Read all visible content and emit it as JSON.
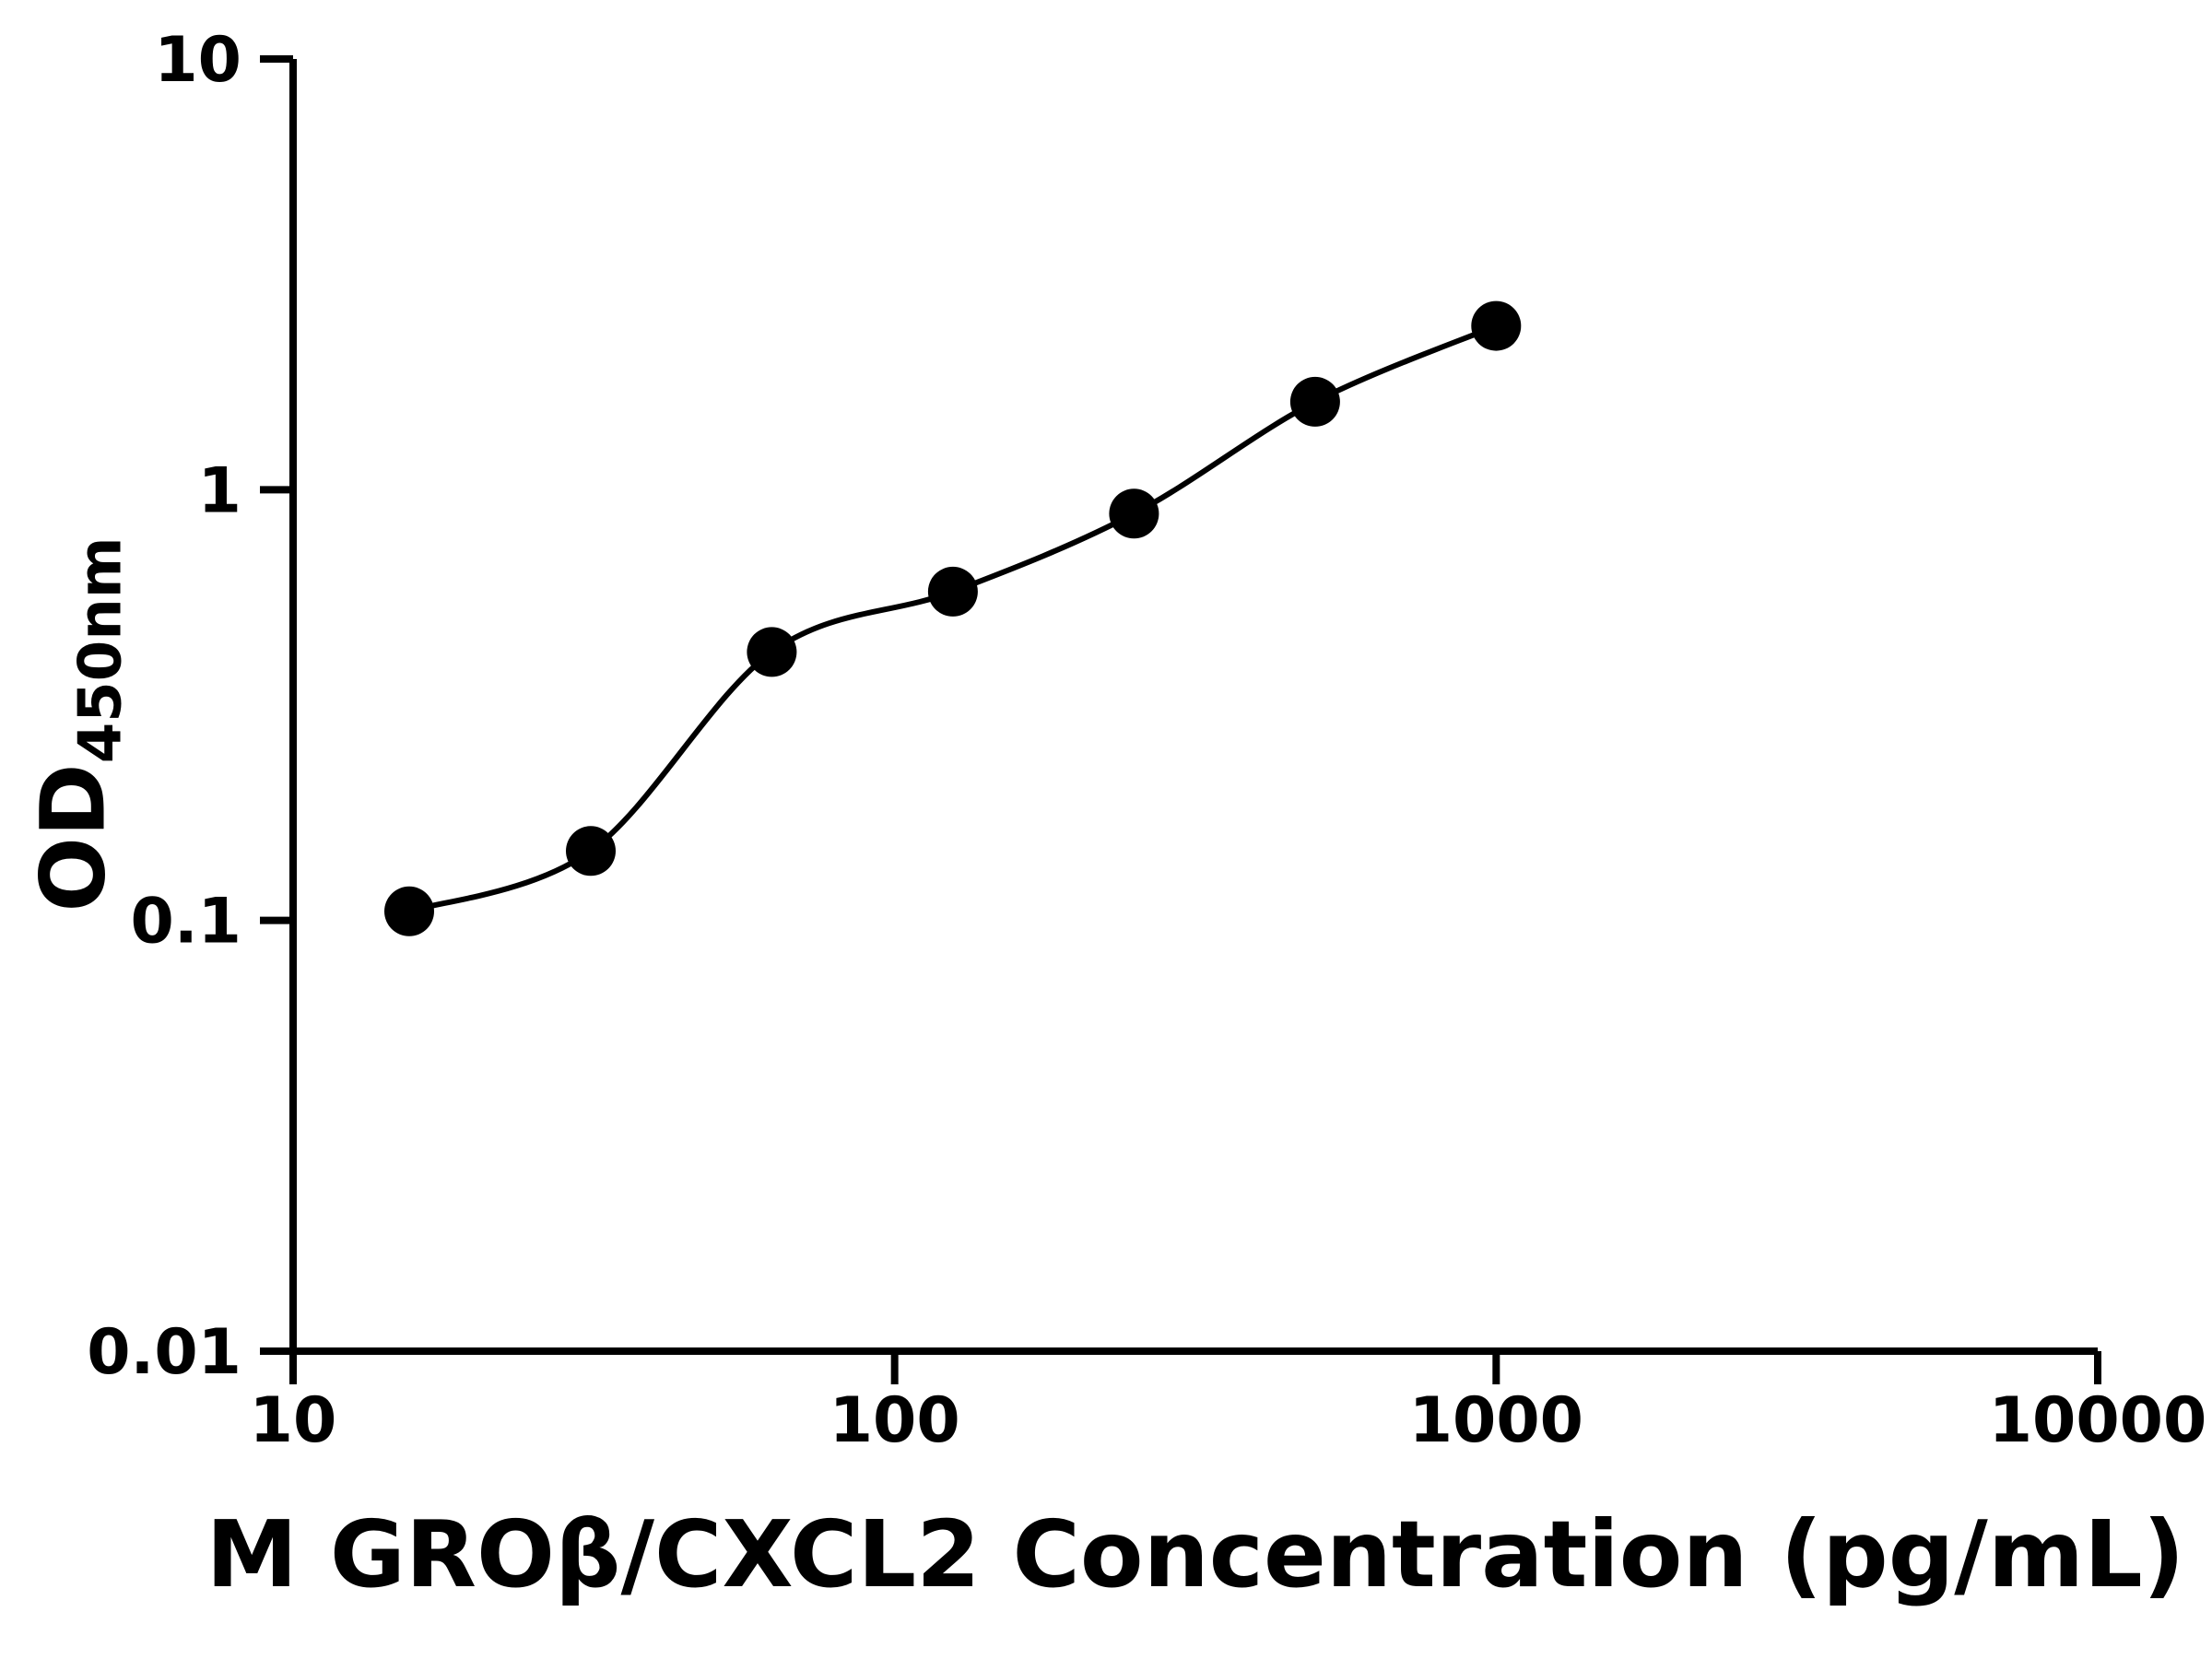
{
  "figure": {
    "background": "#ffffff",
    "foreground": "#000000"
  },
  "chart_data": {
    "type": "scatter",
    "title": "",
    "xlabel": "M GROβ/CXCL2 Concentration (pg/mL)",
    "ylabel_main": "OD",
    "ylabel_sub": "450nm",
    "x_scale": "log10",
    "y_scale": "log10",
    "xlim": [
      10,
      10000
    ],
    "ylim": [
      0.01,
      10
    ],
    "x_ticks": [
      "10",
      "100",
      "1000",
      "10000"
    ],
    "y_ticks": [
      "0.01",
      "0.1",
      "1",
      "10"
    ],
    "grid": false,
    "legend": false,
    "series": [
      {
        "name": "standard-curve",
        "marker": "filled-circle",
        "marker_color": "#000000",
        "line_color": "#000000",
        "x": [
          15.6,
          31.25,
          62.5,
          125,
          250,
          500,
          1000
        ],
        "y": [
          0.105,
          0.145,
          0.42,
          0.58,
          0.88,
          1.6,
          2.4
        ]
      }
    ]
  }
}
